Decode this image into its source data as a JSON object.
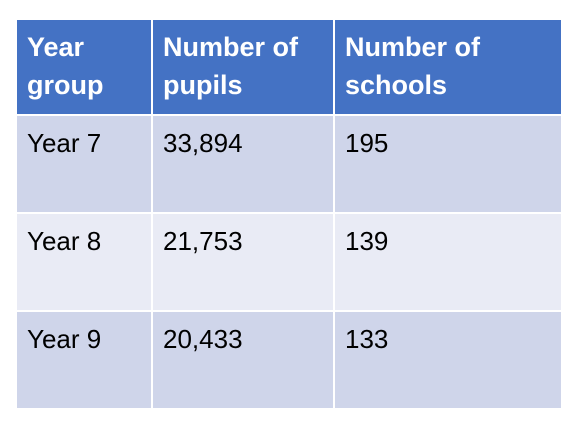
{
  "table": {
    "header": [
      [
        "Year",
        "group"
      ],
      [
        "Number of",
        "pupils"
      ],
      [
        "Number of",
        "schools"
      ]
    ],
    "rows": [
      [
        "Year 7",
        "33,894",
        "195"
      ],
      [
        "Year 8",
        "21,753",
        "139"
      ],
      [
        "Year 9",
        "20,433",
        "133"
      ]
    ]
  }
}
